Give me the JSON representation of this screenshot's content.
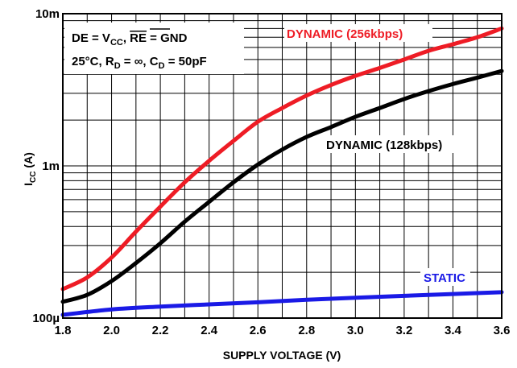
{
  "chart_data": {
    "type": "line",
    "xlabel": "SUPPLY VOLTAGE (V)",
    "ylabel_main": "I",
    "ylabel_sub": "CC",
    "ylabel_unit": " (A)",
    "x_ticks": [
      "1.8",
      "2.0",
      "2.2",
      "2.4",
      "2.6",
      "2.8",
      "3.0",
      "3.2",
      "3.4",
      "3.6"
    ],
    "xlim": [
      1.8,
      3.6
    ],
    "y_scale": "log",
    "ylim": [
      0.0001,
      0.01
    ],
    "y_ticks": [
      {
        "value": 0.0001,
        "label": "100µ"
      },
      {
        "value": 0.001,
        "label": "1m"
      },
      {
        "value": 0.01,
        "label": "10m"
      }
    ],
    "grid": true,
    "annotations": {
      "line1_a": "DE = V",
      "line1_sub": "CC",
      "line1_b": ", ",
      "line1_over": "RE",
      "line1_c": " = GND",
      "line2_a": "25°C, R",
      "line2_sub1": "D",
      "line2_b": " = ∞, C",
      "line2_sub2": "D",
      "line2_c": " = 50pF"
    },
    "series": [
      {
        "name": "DYNAMIC (256kbps)",
        "color": "#ee1c25",
        "x": [
          1.8,
          1.9,
          2.0,
          2.1,
          2.2,
          2.3,
          2.4,
          2.5,
          2.6,
          2.7,
          2.8,
          2.9,
          3.0,
          3.1,
          3.2,
          3.3,
          3.4,
          3.5,
          3.6
        ],
        "y": [
          0.000155,
          0.000185,
          0.00025,
          0.00037,
          0.00054,
          0.00078,
          0.00108,
          0.00146,
          0.00195,
          0.0024,
          0.0029,
          0.0034,
          0.0039,
          0.0044,
          0.005,
          0.0057,
          0.0063,
          0.007,
          0.008
        ]
      },
      {
        "name": "DYNAMIC (128kbps)",
        "color": "#000000",
        "x": [
          1.8,
          1.9,
          2.0,
          2.1,
          2.2,
          2.3,
          2.4,
          2.5,
          2.6,
          2.7,
          2.8,
          2.9,
          3.0,
          3.1,
          3.2,
          3.3,
          3.4,
          3.5,
          3.6
        ],
        "y": [
          0.000128,
          0.000142,
          0.000175,
          0.00023,
          0.00031,
          0.00043,
          0.00058,
          0.00078,
          0.00102,
          0.00128,
          0.00155,
          0.0018,
          0.0021,
          0.0024,
          0.00275,
          0.0031,
          0.00345,
          0.0038,
          0.0042
        ]
      },
      {
        "name": "STATIC",
        "color": "#1a1ae6",
        "x": [
          1.8,
          2.0,
          2.2,
          2.4,
          2.6,
          2.8,
          3.0,
          3.2,
          3.4,
          3.6
        ],
        "y": [
          0.000105,
          0.000114,
          0.000119,
          0.000123,
          0.000127,
          0.000132,
          0.000136,
          0.00014,
          0.000144,
          0.000148
        ]
      }
    ]
  }
}
